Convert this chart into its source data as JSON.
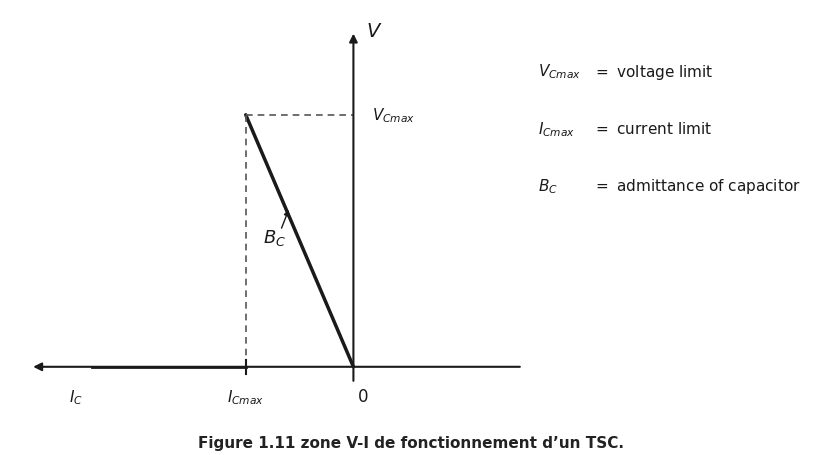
{
  "title": "Figure 1.11 zone V-I de fonctionnement d’un TSC.",
  "background_color": "#ffffff",
  "line_color": "#1a1a1a",
  "dashed_color": "#555555",
  "I_Cmax": -0.35,
  "I_C": -0.85,
  "V_Cmax": 0.75,
  "legend_lines": [
    {
      "label_left": "V_{Cmax}",
      "label_right": "= voltage limit"
    },
    {
      "label_left": "I_{Cmax}",
      "label_right": "= current limit"
    },
    {
      "label_left": "B_C",
      "label_right": "= admittance of capacitor"
    }
  ]
}
